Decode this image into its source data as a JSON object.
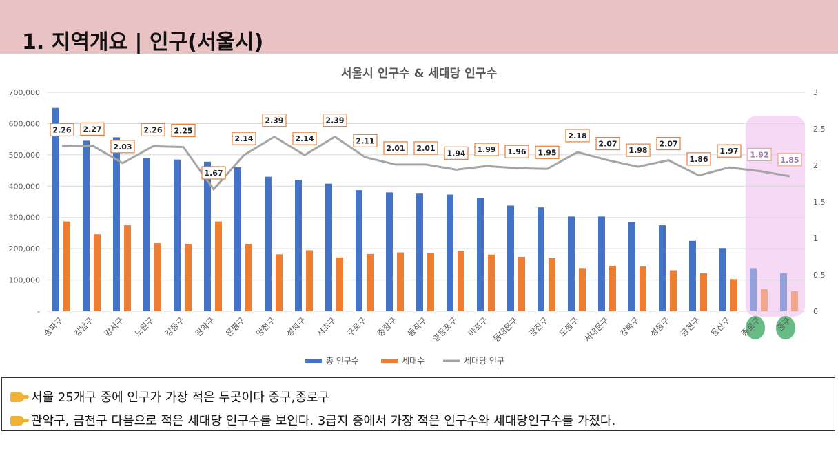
{
  "header": {
    "title": "1. 지역개요 | 인구(서울시)"
  },
  "notes": [
    "서울 25개구 중에 인구가 가장 적은 두곳이다 중구,종로구",
    "관악구, 금천구 다음으로 적은 세대당 인구수를 보인다.  3급지 중에서 가장 적은 인구수와 세대당인구수를 가졌다."
  ],
  "colors": {
    "population": "#4472c4",
    "households": "#ed7d31",
    "per_household": "#a5a5a5",
    "highlight_fill": "#f5d9f5",
    "highlight_circle": "#4caf6e"
  },
  "chart_data": {
    "type": "bar",
    "title": "서울시 인구수 & 세대당 인구수",
    "categories": [
      "송파구",
      "강남구",
      "강서구",
      "노원구",
      "강동구",
      "관악구",
      "은평구",
      "양천구",
      "성북구",
      "서초구",
      "구로구",
      "중랑구",
      "동작구",
      "영등포구",
      "마포구",
      "동대문구",
      "광진구",
      "도봉구",
      "서대문구",
      "강북구",
      "성동구",
      "금천구",
      "용산구",
      "종로구",
      "중구"
    ],
    "series": [
      {
        "name": "총 인구수",
        "axis": "left",
        "type": "bar",
        "values": [
          650000,
          545000,
          556000,
          490000,
          485000,
          478000,
          460000,
          430000,
          420000,
          408000,
          387000,
          380000,
          376000,
          373000,
          361000,
          338000,
          332000,
          303000,
          303000,
          285000,
          275000,
          225000,
          202000,
          138000,
          122000
        ]
      },
      {
        "name": "세대수",
        "axis": "left",
        "type": "bar",
        "values": [
          287000,
          246000,
          275000,
          218000,
          215000,
          287000,
          215000,
          182000,
          195000,
          172000,
          183000,
          188000,
          186000,
          193000,
          181000,
          174000,
          170000,
          138000,
          145000,
          143000,
          131000,
          121000,
          103000,
          71000,
          64000
        ]
      },
      {
        "name": "세대당 인구",
        "axis": "right",
        "type": "line",
        "values": [
          2.26,
          2.27,
          2.03,
          2.26,
          2.25,
          1.67,
          2.14,
          2.39,
          2.14,
          2.39,
          2.11,
          2.01,
          2.01,
          1.94,
          1.99,
          1.96,
          1.95,
          2.18,
          2.07,
          1.98,
          2.07,
          1.86,
          1.97,
          1.92,
          1.85
        ]
      }
    ],
    "y_left": {
      "min": 0,
      "max": 700000,
      "ticks": [
        "-",
        "100,000",
        "200,000",
        "300,000",
        "400,000",
        "500,000",
        "600,000",
        "700,000"
      ]
    },
    "y_right": {
      "min": 0,
      "max": 3,
      "ticks": [
        "0",
        "0.5",
        "1",
        "1.5",
        "2",
        "2.5",
        "3"
      ]
    },
    "highlighted_categories": [
      "종로구",
      "중구"
    ],
    "legend_position": "bottom",
    "grid": true
  }
}
